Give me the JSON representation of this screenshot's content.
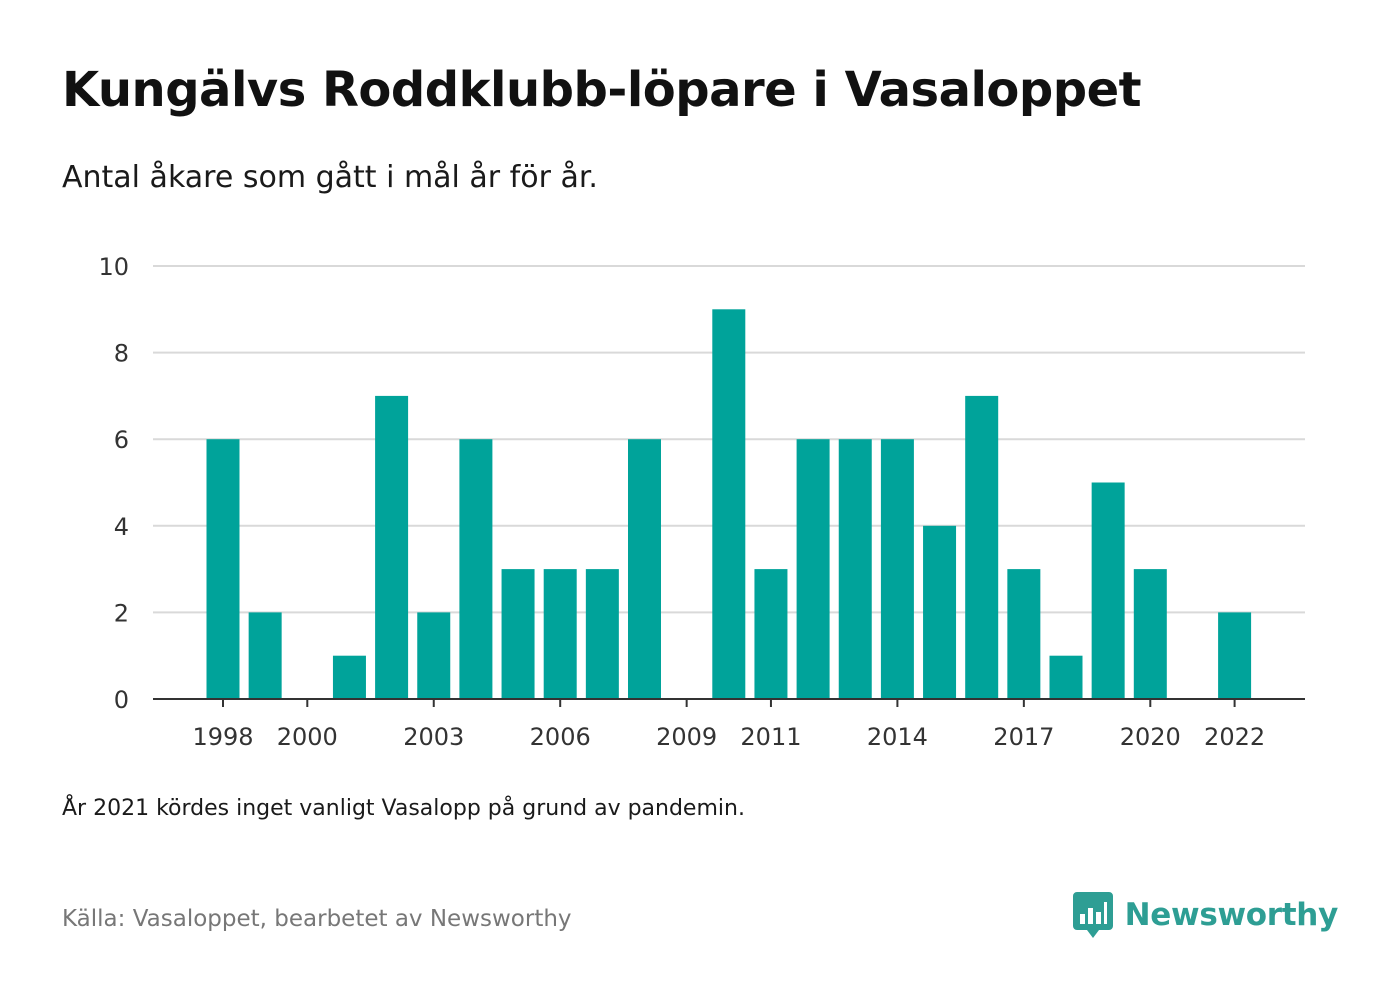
{
  "title": "Kungälvs Roddklubb-löpare i Vasaloppet",
  "subtitle": "Antal åkare som gått i mål år för år.",
  "note": "År 2021 kördes inget vanligt Vasalopp på grund av pandemin.",
  "source": "Källa: Vasaloppet, bearbetet av Newsworthy",
  "logo": {
    "text": "Newsworthy",
    "icon": "newsworthy-bar-chart-icon",
    "color": "#2e9e94"
  },
  "chart_data": {
    "type": "bar",
    "title": "Kungälvs Roddklubb-löpare i Vasaloppet",
    "subtitle": "Antal åkare som gått i mål år för år.",
    "xlabel": "",
    "ylabel": "",
    "ylim": [
      0,
      10
    ],
    "yticks": [
      0,
      2,
      4,
      6,
      8,
      10
    ],
    "x_tick_labels": [
      "1998",
      "2000",
      "2003",
      "2006",
      "2009",
      "2011",
      "2014",
      "2017",
      "2020",
      "2022"
    ],
    "categories": [
      "1998",
      "1999",
      "2000",
      "2001",
      "2002",
      "2003",
      "2004",
      "2005",
      "2006",
      "2007",
      "2008",
      "2009",
      "2010",
      "2011",
      "2012",
      "2013",
      "2014",
      "2015",
      "2016",
      "2017",
      "2018",
      "2019",
      "2020",
      "2021",
      "2022"
    ],
    "values": [
      6,
      2,
      0,
      1,
      7,
      2,
      6,
      3,
      3,
      3,
      6,
      0,
      9,
      3,
      6,
      6,
      6,
      4,
      7,
      3,
      1,
      5,
      3,
      0,
      2
    ],
    "bar_color": "#00a39a",
    "grid": true,
    "legend": "none"
  }
}
